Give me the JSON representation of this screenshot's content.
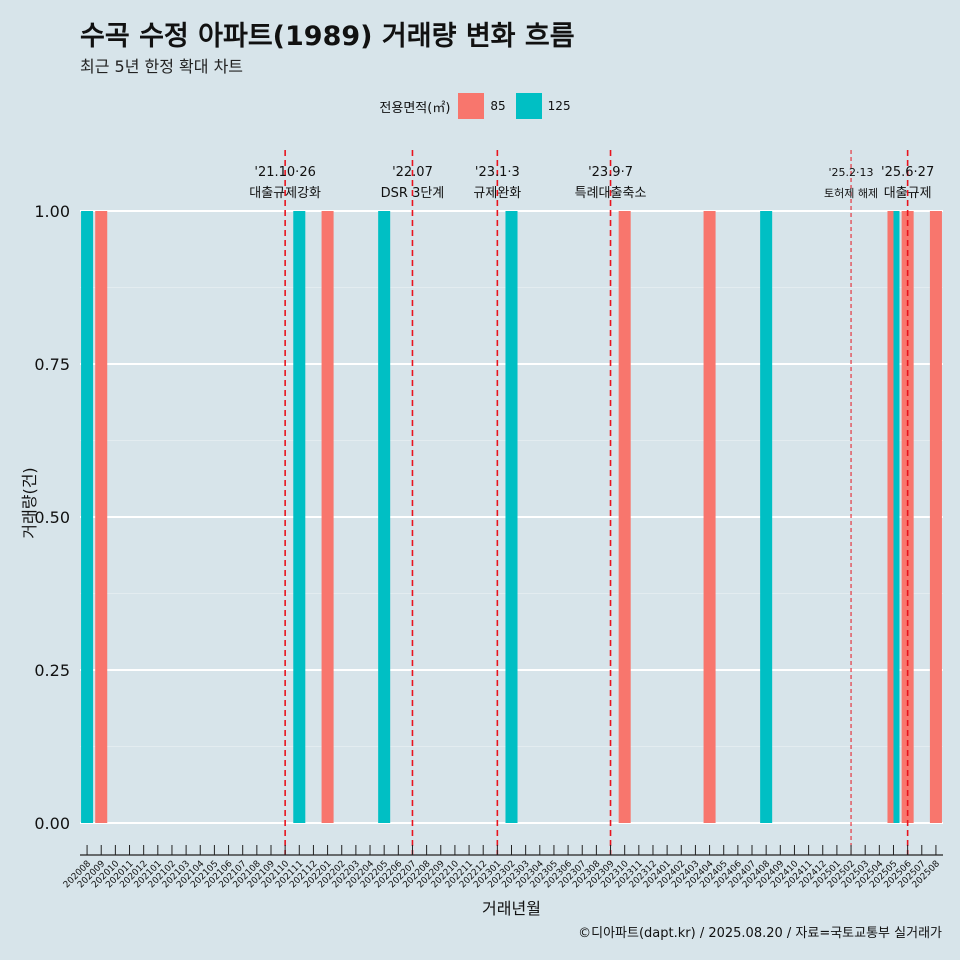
{
  "title": "수곡 수정 아파트(1989) 거래량 변화 흐름",
  "subtitle": "최근 5년 한정 확대 차트",
  "caption": "©디아파트(dapt.kr) / 2025.08.20 / 자료=국토교통부 실거래가",
  "legend": {
    "title": "전용면적(㎡)",
    "items": [
      {
        "label": "85",
        "color": "#f8766d"
      },
      {
        "label": "125",
        "color": "#00bfc4"
      }
    ]
  },
  "chart_data": {
    "type": "bar",
    "xlabel": "거래년월",
    "ylabel": "거래량(건)",
    "ylim": [
      0,
      1
    ],
    "yticks": [
      "0.00",
      "0.25",
      "0.50",
      "0.75",
      "1.00"
    ],
    "grid": true,
    "categories": [
      "202008",
      "202009",
      "202010",
      "202011",
      "202012",
      "202101",
      "202102",
      "202103",
      "202104",
      "202105",
      "202106",
      "202107",
      "202108",
      "202109",
      "202110",
      "202111",
      "202112",
      "202201",
      "202202",
      "202203",
      "202204",
      "202205",
      "202206",
      "202207",
      "202208",
      "202209",
      "202210",
      "202211",
      "202212",
      "202301",
      "202302",
      "202303",
      "202304",
      "202305",
      "202306",
      "202307",
      "202308",
      "202309",
      "202310",
      "202311",
      "202312",
      "202401",
      "202402",
      "202403",
      "202404",
      "202405",
      "202406",
      "202407",
      "202408",
      "202409",
      "202410",
      "202411",
      "202412",
      "202501",
      "202502",
      "202503",
      "202504",
      "202505",
      "202506",
      "202507",
      "202508"
    ],
    "series": [
      {
        "name": "85",
        "color": "#f8766d",
        "points": [
          {
            "month": "202009",
            "value": 1
          },
          {
            "month": "202201",
            "value": 1
          },
          {
            "month": "202310",
            "value": 1
          },
          {
            "month": "202404",
            "value": 1
          },
          {
            "month": "202505",
            "value": 1
          },
          {
            "month": "202506",
            "value": 1
          },
          {
            "month": "202508",
            "value": 1
          }
        ]
      },
      {
        "name": "125",
        "color": "#00bfc4",
        "points": [
          {
            "month": "202008",
            "value": 1
          },
          {
            "month": "202111",
            "value": 1
          },
          {
            "month": "202205",
            "value": 1
          },
          {
            "month": "202302",
            "value": 1
          },
          {
            "month": "202408",
            "value": 1
          },
          {
            "month": "202505",
            "value": 1
          }
        ]
      }
    ],
    "annotations": [
      {
        "month": "202110",
        "date": "'21.10·26",
        "text": "대출규제강화",
        "style": "thick"
      },
      {
        "month": "202207",
        "date": "'22.07",
        "text": "DSR 3단계",
        "style": "thick"
      },
      {
        "month": "202301",
        "date": "'23.1·3",
        "text": "규제완화",
        "style": "thick"
      },
      {
        "month": "202309",
        "date": "'23.9·7",
        "text": "특례대출축소",
        "style": "thick"
      },
      {
        "month": "202502",
        "date": "'25.2·13",
        "text": "토허제 해제",
        "style": "thin"
      },
      {
        "month": "202506",
        "date": "'25.6·27",
        "text": "대출규제",
        "style": "thick"
      }
    ]
  }
}
